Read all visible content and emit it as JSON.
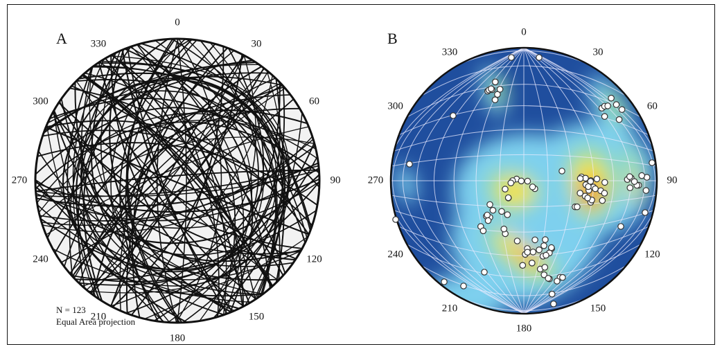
{
  "panels": {
    "a": {
      "label": "A"
    },
    "b": {
      "label": "B"
    }
  },
  "azimuths": [
    "0",
    "30",
    "60",
    "90",
    "120",
    "150",
    "180",
    "210",
    "240",
    "270",
    "300",
    "330"
  ],
  "annotation": {
    "count": "N = 123",
    "projection": "Equal Area projection"
  },
  "colors": {
    "great_circle": "#111111",
    "density_low": "#1f4e9e",
    "density_mid_low": "#7ed0ee",
    "density_mid": "#9fe08a",
    "density_mid_high": "#ffe23a",
    "density_high": "#e52a1a",
    "point_fill": "#ffffff",
    "point_stroke": "#333333"
  }
}
